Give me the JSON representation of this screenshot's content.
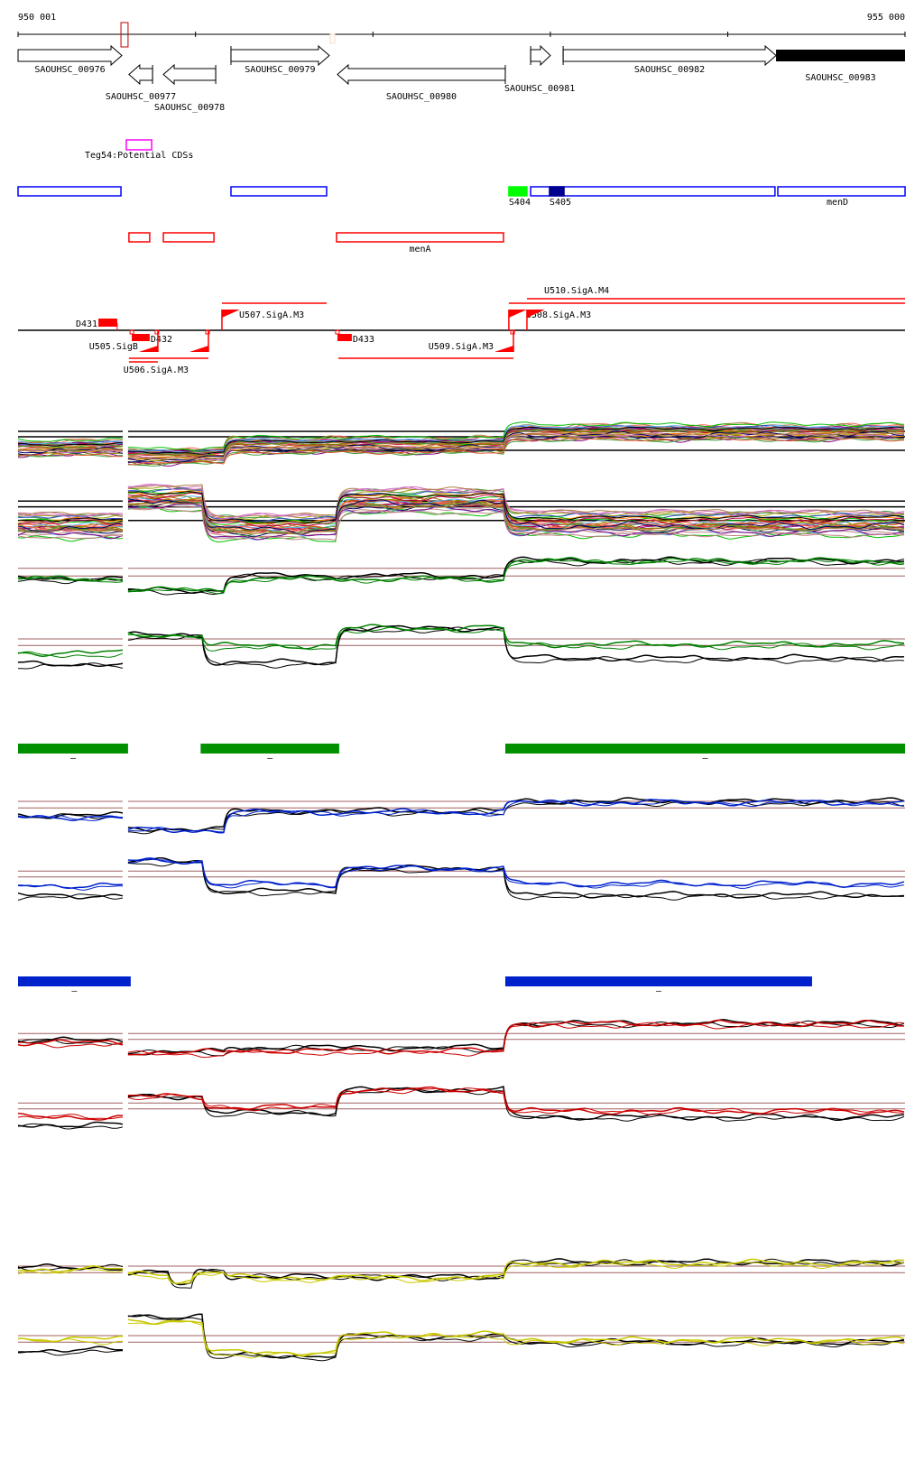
{
  "ruler": {
    "start_label": "950 001",
    "end_label": "955 000",
    "start_bp": 950001,
    "end_bp": 955000,
    "ticks_bp": [
      950001,
      951001,
      952001,
      953001,
      954001,
      955000
    ]
  },
  "markers": [
    {
      "start": 950581,
      "end": 950621,
      "color": "#c00000"
    },
    {
      "start": 951761,
      "end": 951786,
      "color": "#f8d8c8"
    }
  ],
  "genes": [
    {
      "name": "SAOUHSC_00976",
      "start": 950001,
      "end": 950586,
      "strand": "+",
      "filled": false
    },
    {
      "name": "SAOUHSC_00977",
      "start": 950626,
      "end": 950759,
      "strand": "-",
      "filled": false
    },
    {
      "name": "SAOUHSC_00978",
      "start": 950820,
      "end": 951115,
      "strand": "-",
      "filled": false
    },
    {
      "name": "SAOUHSC_00979",
      "start": 951201,
      "end": 951755,
      "strand": "+",
      "filled": false
    },
    {
      "name": "SAOUHSC_00980",
      "start": 951801,
      "end": 952747,
      "strand": "-",
      "filled": false
    },
    {
      "name": "SAOUHSC_00981",
      "start": 952890,
      "end": 953001,
      "strand": "+",
      "filled": false
    },
    {
      "name": "SAOUHSC_00982",
      "start": 953073,
      "end": 954273,
      "strand": "+",
      "filled": false
    },
    {
      "name": "SAOUHSC_00983",
      "start": 954273,
      "end": 955000,
      "strand": "+",
      "filled": true
    }
  ],
  "potential_cds": {
    "label": "Teg54:Potential CDSs",
    "start": 950611,
    "end": 950754,
    "color": "#ff00ff"
  },
  "blue_features": [
    {
      "name": "",
      "start": 950001,
      "end": 950581,
      "color": "#0000ff",
      "filled": false
    },
    {
      "name": "",
      "start": 951201,
      "end": 951740,
      "color": "#0000ff",
      "filled": false
    },
    {
      "name": "S404",
      "start": 952767,
      "end": 952869,
      "color": "#00ff00",
      "filled": true
    },
    {
      "name": "",
      "start": 952890,
      "end": 954267,
      "color": "#0000ff",
      "filled": false
    },
    {
      "name": "S405",
      "start": 952996,
      "end": 953078,
      "color": "#000090",
      "filled": true
    },
    {
      "name": "menD",
      "start": 954283,
      "end": 955000,
      "color": "#0000ff",
      "filled": false
    }
  ],
  "red_features": [
    {
      "name": "",
      "start": 950626,
      "end": 950743
    },
    {
      "name": "",
      "start": 950820,
      "end": 951105
    },
    {
      "name": "menA",
      "start": 951796,
      "end": 952737
    }
  ],
  "regulators": [
    {
      "name": "D431",
      "start": 950454,
      "end": 950560,
      "strand": "+"
    },
    {
      "name": "D432",
      "start": 950642,
      "end": 950743,
      "strand": "-"
    },
    {
      "name": "D433",
      "start": 951801,
      "end": 951882,
      "strand": "-"
    }
  ],
  "promoters": [
    {
      "name": "U505.SigB",
      "pos": 950789,
      "strand": "-"
    },
    {
      "name": "U506.SigA.M3",
      "pos": 951074,
      "strand": "-"
    },
    {
      "name": "U507.SigA.M3",
      "pos": 951150,
      "strand": "+"
    },
    {
      "name": "U509.SigA.M3",
      "pos": 952793,
      "strand": "-"
    },
    {
      "name": "U508.SigA.M3",
      "pos": 952767,
      "strand": "+"
    },
    {
      "name": "U510.SigA.M4",
      "pos": 952869,
      "strand": "+"
    }
  ],
  "transcripts": [
    {
      "start": 950626,
      "end": 951074,
      "strand": "-"
    },
    {
      "start": 950626,
      "end": 950789,
      "strand": "-"
    },
    {
      "start": 951150,
      "end": 951740,
      "strand": "+"
    },
    {
      "start": 951806,
      "end": 952793,
      "strand": "-"
    },
    {
      "start": 952767,
      "end": 955000,
      "strand": "+"
    },
    {
      "start": 952869,
      "end": 955000,
      "strand": "+"
    }
  ],
  "green_segments": [
    {
      "start": 950001,
      "end": 950621,
      "label": "–",
      "color": "#009000"
    },
    {
      "start": 951030,
      "end": 951811,
      "label": "–",
      "color": "#009000"
    },
    {
      "start": 952747,
      "end": 955000,
      "label": "–",
      "color": "#009000"
    }
  ],
  "blue_segments": [
    {
      "start": 950001,
      "end": 950636,
      "label": "–",
      "color": "#0022cc"
    },
    {
      "start": 952747,
      "end": 954476,
      "label": "–",
      "color": "#0022cc"
    }
  ],
  "chart_data": {
    "type": "line",
    "x_unit": "bp",
    "xlim": [
      950001,
      955000
    ],
    "ylim": [
      0,
      100
    ],
    "palette": [
      "#e05030",
      "#a0a000",
      "#00c000",
      "#800080",
      "#c08080",
      "#60b0f0",
      "#c06020",
      "#c00040",
      "#808000",
      "#ff6060",
      "#40a040",
      "#d070c0",
      "#000060",
      "#b08040",
      "#ff9000",
      "#3050c0"
    ],
    "tracks": [
      {
        "name": "all-conditions-1",
        "kind": "multi",
        "line_count": 30,
        "ref_color": "#000000",
        "refs": [
          70,
          60,
          35
        ],
        "series": [
          {
            "color": "multi",
            "segments": [
              [
                950001,
                950591,
                38
              ],
              [
                950621,
                951171,
                23
              ],
              [
                951171,
                952747,
                43
              ],
              [
                952747,
                955000,
                67
              ]
            ]
          }
        ]
      },
      {
        "name": "all-conditions-2",
        "kind": "multi",
        "line_count": 30,
        "ref_color": "#000000",
        "refs": [
          56,
          48,
          29
        ],
        "series": [
          {
            "color": "multi",
            "segments": [
              [
                950001,
                950591,
                22
              ],
              [
                950621,
                951049,
                60
              ],
              [
                951049,
                951796,
                20
              ],
              [
                951796,
                952747,
                56
              ],
              [
                952747,
                955000,
                25
              ]
            ]
          }
        ]
      },
      {
        "name": "green-1",
        "kind": "pair",
        "ref_color": "#a06060",
        "refs": [
          67,
          53
        ],
        "series": [
          {
            "color": "#000000",
            "segments": [
              [
                950001,
                950591,
                47
              ],
              [
                950621,
                951171,
                25
              ],
              [
                951171,
                952747,
                52
              ],
              [
                952747,
                955000,
                80
              ]
            ]
          },
          {
            "color": "#008000",
            "segments": [
              [
                950001,
                950591,
                47
              ],
              [
                950621,
                951171,
                26
              ],
              [
                951171,
                952747,
                47
              ],
              [
                952747,
                955000,
                80
              ]
            ]
          }
        ]
      },
      {
        "name": "green-2",
        "kind": "pair",
        "ref_color": "#a06060",
        "refs": [
          70,
          58
        ],
        "series": [
          {
            "color": "#000000",
            "segments": [
              [
                950001,
                950591,
                22
              ],
              [
                950621,
                951049,
                75
              ],
              [
                951049,
                951796,
                25
              ],
              [
                951796,
                952747,
                88
              ],
              [
                952747,
                955000,
                33
              ]
            ]
          },
          {
            "color": "#008000",
            "segments": [
              [
                950001,
                950591,
                42
              ],
              [
                950621,
                951049,
                75
              ],
              [
                951049,
                951796,
                55
              ],
              [
                951796,
                952747,
                88
              ],
              [
                952747,
                955000,
                58
              ]
            ]
          }
        ]
      },
      {
        "name": "blue-1",
        "kind": "pair",
        "ref_color": "#a06060",
        "refs": [
          70,
          58
        ],
        "series": [
          {
            "color": "#000000",
            "segments": [
              [
                950001,
                950591,
                42
              ],
              [
                950621,
                951171,
                17
              ],
              [
                951171,
                952747,
                50
              ],
              [
                952747,
                955000,
                68
              ]
            ]
          },
          {
            "color": "#0022cc",
            "segments": [
              [
                950001,
                950591,
                40
              ],
              [
                950621,
                951171,
                16
              ],
              [
                951171,
                952747,
                49
              ],
              [
                952747,
                955000,
                67
              ]
            ]
          }
        ]
      },
      {
        "name": "blue-2",
        "kind": "pair",
        "ref_color": "#a06060",
        "refs": [
          58,
          47
        ],
        "series": [
          {
            "color": "#000000",
            "segments": [
              [
                950001,
                950591,
                12
              ],
              [
                950621,
                951049,
                75
              ],
              [
                951049,
                951796,
                20
              ],
              [
                951796,
                952747,
                62
              ],
              [
                952747,
                955000,
                13
              ]
            ]
          },
          {
            "color": "#0022cc",
            "segments": [
              [
                950001,
                950591,
                30
              ],
              [
                950621,
                951049,
                75
              ],
              [
                951049,
                951796,
                33
              ],
              [
                951796,
                952747,
                62
              ],
              [
                952747,
                955000,
                33
              ]
            ]
          }
        ]
      },
      {
        "name": "red-1",
        "kind": "pair",
        "ref_color": "#a06060",
        "refs": [
          58,
          47
        ],
        "series": [
          {
            "color": "#000000",
            "segments": [
              [
                950001,
                950591,
                43
              ],
              [
                950621,
                951171,
                22
              ],
              [
                951171,
                952747,
                30
              ],
              [
                952747,
                955000,
                75
              ]
            ]
          },
          {
            "color": "#cc0000",
            "segments": [
              [
                950001,
                950591,
                40
              ],
              [
                950621,
                951171,
                22
              ],
              [
                951171,
                952747,
                25
              ],
              [
                952747,
                955000,
                75
              ]
            ]
          }
        ]
      },
      {
        "name": "red-2",
        "kind": "pair",
        "ref_color": "#a06060",
        "refs": [
          63,
          52
        ],
        "series": [
          {
            "color": "#000000",
            "segments": [
              [
                950001,
                950591,
                22
              ],
              [
                950621,
                951049,
                75
              ],
              [
                951049,
                951796,
                45
              ],
              [
                951796,
                952747,
                87
              ],
              [
                952747,
                955000,
                37
              ]
            ]
          },
          {
            "color": "#cc0000",
            "segments": [
              [
                950001,
                950591,
                37
              ],
              [
                950621,
                951049,
                75
              ],
              [
                951049,
                951796,
                55
              ],
              [
                951796,
                952747,
                87
              ],
              [
                952747,
                955000,
                48
              ]
            ]
          }
        ]
      },
      {
        "name": "yellow-1",
        "kind": "pair",
        "ref_color": "#a06060",
        "refs": [
          70,
          58
        ],
        "series": [
          {
            "color": "#000000",
            "segments": [
              [
                950001,
                950591,
                67
              ],
              [
                950621,
                950850,
                58
              ],
              [
                950850,
                950980,
                35
              ],
              [
                950980,
                951171,
                62
              ],
              [
                951171,
                952747,
                50
              ],
              [
                952747,
                955000,
                77
              ]
            ]
          },
          {
            "color": "#c8c800",
            "segments": [
              [
                950001,
                950591,
                62
              ],
              [
                950621,
                950850,
                55
              ],
              [
                950850,
                950980,
                40
              ],
              [
                950980,
                951171,
                56
              ],
              [
                951171,
                952747,
                47
              ],
              [
                952747,
                955000,
                74
              ]
            ]
          }
        ]
      },
      {
        "name": "yellow-2",
        "kind": "pair",
        "ref_color": "#a06060",
        "refs": [
          50,
          38
        ],
        "series": [
          {
            "color": "#000000",
            "segments": [
              [
                950001,
                950591,
                22
              ],
              [
                950621,
                951049,
                85
              ],
              [
                951049,
                951796,
                12
              ],
              [
                951796,
                952747,
                47
              ],
              [
                952747,
                955000,
                37
              ]
            ]
          },
          {
            "color": "#c8c800",
            "segments": [
              [
                950001,
                950591,
                42
              ],
              [
                950621,
                951049,
                75
              ],
              [
                951049,
                951796,
                17
              ],
              [
                951796,
                952747,
                50
              ],
              [
                952747,
                955000,
                40
              ]
            ]
          }
        ]
      }
    ]
  }
}
